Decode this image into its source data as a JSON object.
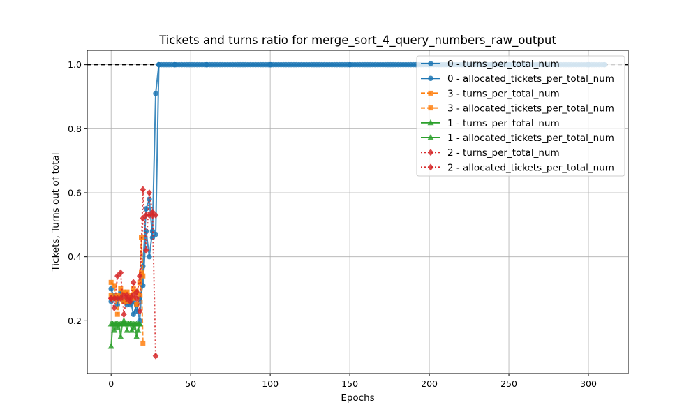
{
  "chart_data": {
    "type": "line",
    "title": "Tickets and turns ratio for merge_sort_4_query_numbers_raw_output",
    "xlabel": "Epochs",
    "ylabel": "Tickets, Turns out of total",
    "xlim": [
      -15,
      325
    ],
    "ylim": [
      0.035,
      1.045
    ],
    "xticks": [
      0,
      50,
      100,
      150,
      200,
      250,
      300
    ],
    "yticks": [
      0.2,
      0.4,
      0.6,
      0.8,
      1.0
    ],
    "ytick_labels": [
      "0.2",
      "0.4",
      "0.6",
      "0.8",
      "1.0"
    ],
    "grid": true,
    "legend_position": "upper right",
    "reference_line": {
      "y": 1.0,
      "style": "dashed",
      "color": "#000000"
    },
    "series": [
      {
        "name": "0 - turns_per_total_num",
        "color": "#1f77b4",
        "marker": "circle",
        "linestyle": "solid",
        "x": [
          0,
          2,
          4,
          6,
          8,
          10,
          12,
          14,
          16,
          18,
          20,
          22,
          24,
          26,
          28,
          30,
          40,
          60,
          100,
          150,
          200,
          250,
          300,
          310
        ],
        "y": [
          0.3,
          0.27,
          0.25,
          0.28,
          0.26,
          0.27,
          0.25,
          0.26,
          0.23,
          0.27,
          0.31,
          0.48,
          0.4,
          0.48,
          0.91,
          1.0,
          1.0,
          1.0,
          1.0,
          1.0,
          1.0,
          1.0,
          1.0,
          1.0
        ]
      },
      {
        "name": "0 - allocated_tickets_per_total_num",
        "color": "#1f77b4",
        "marker": "circle",
        "linestyle": "solid",
        "x": [
          0,
          2,
          4,
          6,
          8,
          10,
          12,
          14,
          16,
          18,
          20,
          22,
          24,
          26,
          28,
          30,
          40,
          60,
          100,
          150,
          200,
          250,
          300,
          310
        ],
        "y": [
          0.26,
          0.28,
          0.27,
          0.29,
          0.26,
          0.25,
          0.27,
          0.22,
          0.25,
          0.2,
          0.37,
          0.55,
          0.58,
          0.46,
          0.47,
          1.0,
          1.0,
          1.0,
          1.0,
          1.0,
          1.0,
          1.0,
          1.0,
          1.0
        ]
      },
      {
        "name": "3 - turns_per_total_num",
        "color": "#ff7f0e",
        "marker": "square",
        "linestyle": "dashed",
        "x": [
          0,
          2,
          4,
          6,
          8,
          10,
          12,
          14,
          16,
          18,
          19,
          20
        ],
        "y": [
          0.32,
          0.31,
          0.22,
          0.3,
          0.26,
          0.29,
          0.27,
          0.3,
          0.25,
          0.28,
          0.35,
          0.13
        ]
      },
      {
        "name": "3 - allocated_tickets_per_total_num",
        "color": "#ff7f0e",
        "marker": "square",
        "linestyle": "dashed",
        "x": [
          0,
          2,
          4,
          6,
          8,
          10,
          12,
          14,
          16,
          18,
          19,
          20
        ],
        "y": [
          0.28,
          0.27,
          0.28,
          0.27,
          0.29,
          0.26,
          0.28,
          0.27,
          0.29,
          0.32,
          0.46,
          0.34
        ]
      },
      {
        "name": "1 - turns_per_total_num",
        "color": "#2ca02c",
        "marker": "triangle",
        "linestyle": "solid",
        "x": [
          0,
          1,
          2,
          3,
          4,
          5,
          6,
          7,
          8,
          9,
          10,
          11,
          12,
          13,
          14,
          15,
          16,
          17,
          18
        ],
        "y": [
          0.12,
          0.19,
          0.17,
          0.19,
          0.18,
          0.19,
          0.15,
          0.19,
          0.2,
          0.19,
          0.17,
          0.19,
          0.19,
          0.17,
          0.18,
          0.19,
          0.15,
          0.17,
          0.19
        ]
      },
      {
        "name": "1 - allocated_tickets_per_total_num",
        "color": "#2ca02c",
        "marker": "triangle",
        "linestyle": "solid",
        "x": [
          0,
          1,
          2,
          3,
          4,
          5,
          6,
          7,
          8,
          9,
          10,
          11,
          12,
          13,
          14,
          15,
          16,
          17,
          18
        ],
        "y": [
          0.19,
          0.19,
          0.19,
          0.19,
          0.19,
          0.19,
          0.19,
          0.19,
          0.19,
          0.19,
          0.19,
          0.19,
          0.19,
          0.19,
          0.19,
          0.19,
          0.19,
          0.19,
          0.19
        ]
      },
      {
        "name": "2 - turns_per_total_num",
        "color": "#d62728",
        "marker": "diamond",
        "linestyle": "dotted",
        "x": [
          0,
          2,
          4,
          6,
          8,
          10,
          12,
          14,
          16,
          18,
          20,
          22,
          24,
          26,
          28
        ],
        "y": [
          0.27,
          0.24,
          0.34,
          0.35,
          0.22,
          0.28,
          0.26,
          0.32,
          0.29,
          0.23,
          0.61,
          0.42,
          0.6,
          0.54,
          0.09
        ]
      },
      {
        "name": "2 - allocated_tickets_per_total_num",
        "color": "#d62728",
        "marker": "diamond",
        "linestyle": "dotted",
        "x": [
          0,
          2,
          4,
          6,
          8,
          10,
          12,
          14,
          16,
          18,
          20,
          22,
          24,
          26,
          28
        ],
        "y": [
          0.27,
          0.27,
          0.27,
          0.27,
          0.28,
          0.27,
          0.27,
          0.28,
          0.27,
          0.34,
          0.52,
          0.53,
          0.53,
          0.53,
          0.53
        ]
      }
    ]
  }
}
